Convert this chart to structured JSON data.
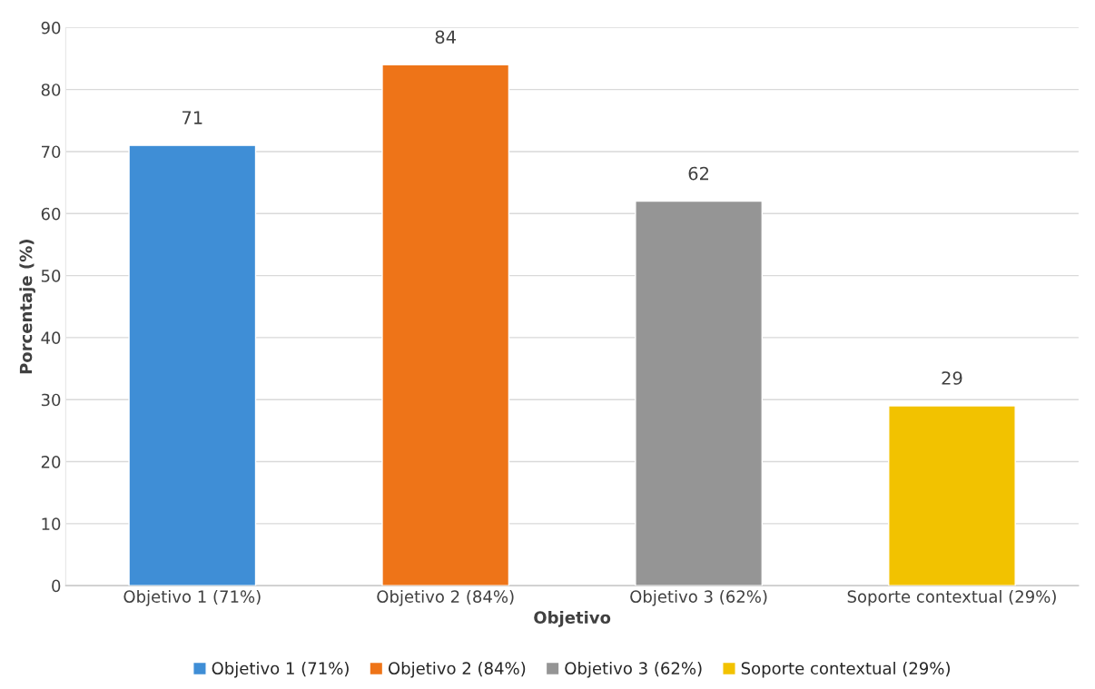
{
  "chart_data": {
    "type": "bar",
    "xlabel": "Objetivo",
    "ylabel": "Porcentaje (%)",
    "categories": [
      "Objetivo 1 (71%)",
      "Objetivo 2 (84%)",
      "Objetivo 3 (62%)",
      "Soporte contextual (29%)"
    ],
    "series": [
      {
        "name": "Objetivo 1 (71%)",
        "color": "#3f8ed6",
        "values": [
          71,
          null,
          null,
          null
        ]
      },
      {
        "name": "Objetivo 2 (84%)",
        "color": "#ee7418",
        "values": [
          null,
          84,
          null,
          null
        ]
      },
      {
        "name": "Objetivo 3 (62%)",
        "color": "#959595",
        "values": [
          null,
          null,
          62,
          null
        ]
      },
      {
        "name": "Soporte contextual (29%)",
        "color": "#f2c200",
        "values": [
          null,
          null,
          null,
          29
        ]
      }
    ],
    "ylim": [
      0,
      90
    ],
    "yticks": [
      0,
      10,
      20,
      30,
      40,
      50,
      60,
      70,
      80,
      90
    ],
    "grid": "y",
    "data_labels": true,
    "legend": "bottom"
  }
}
